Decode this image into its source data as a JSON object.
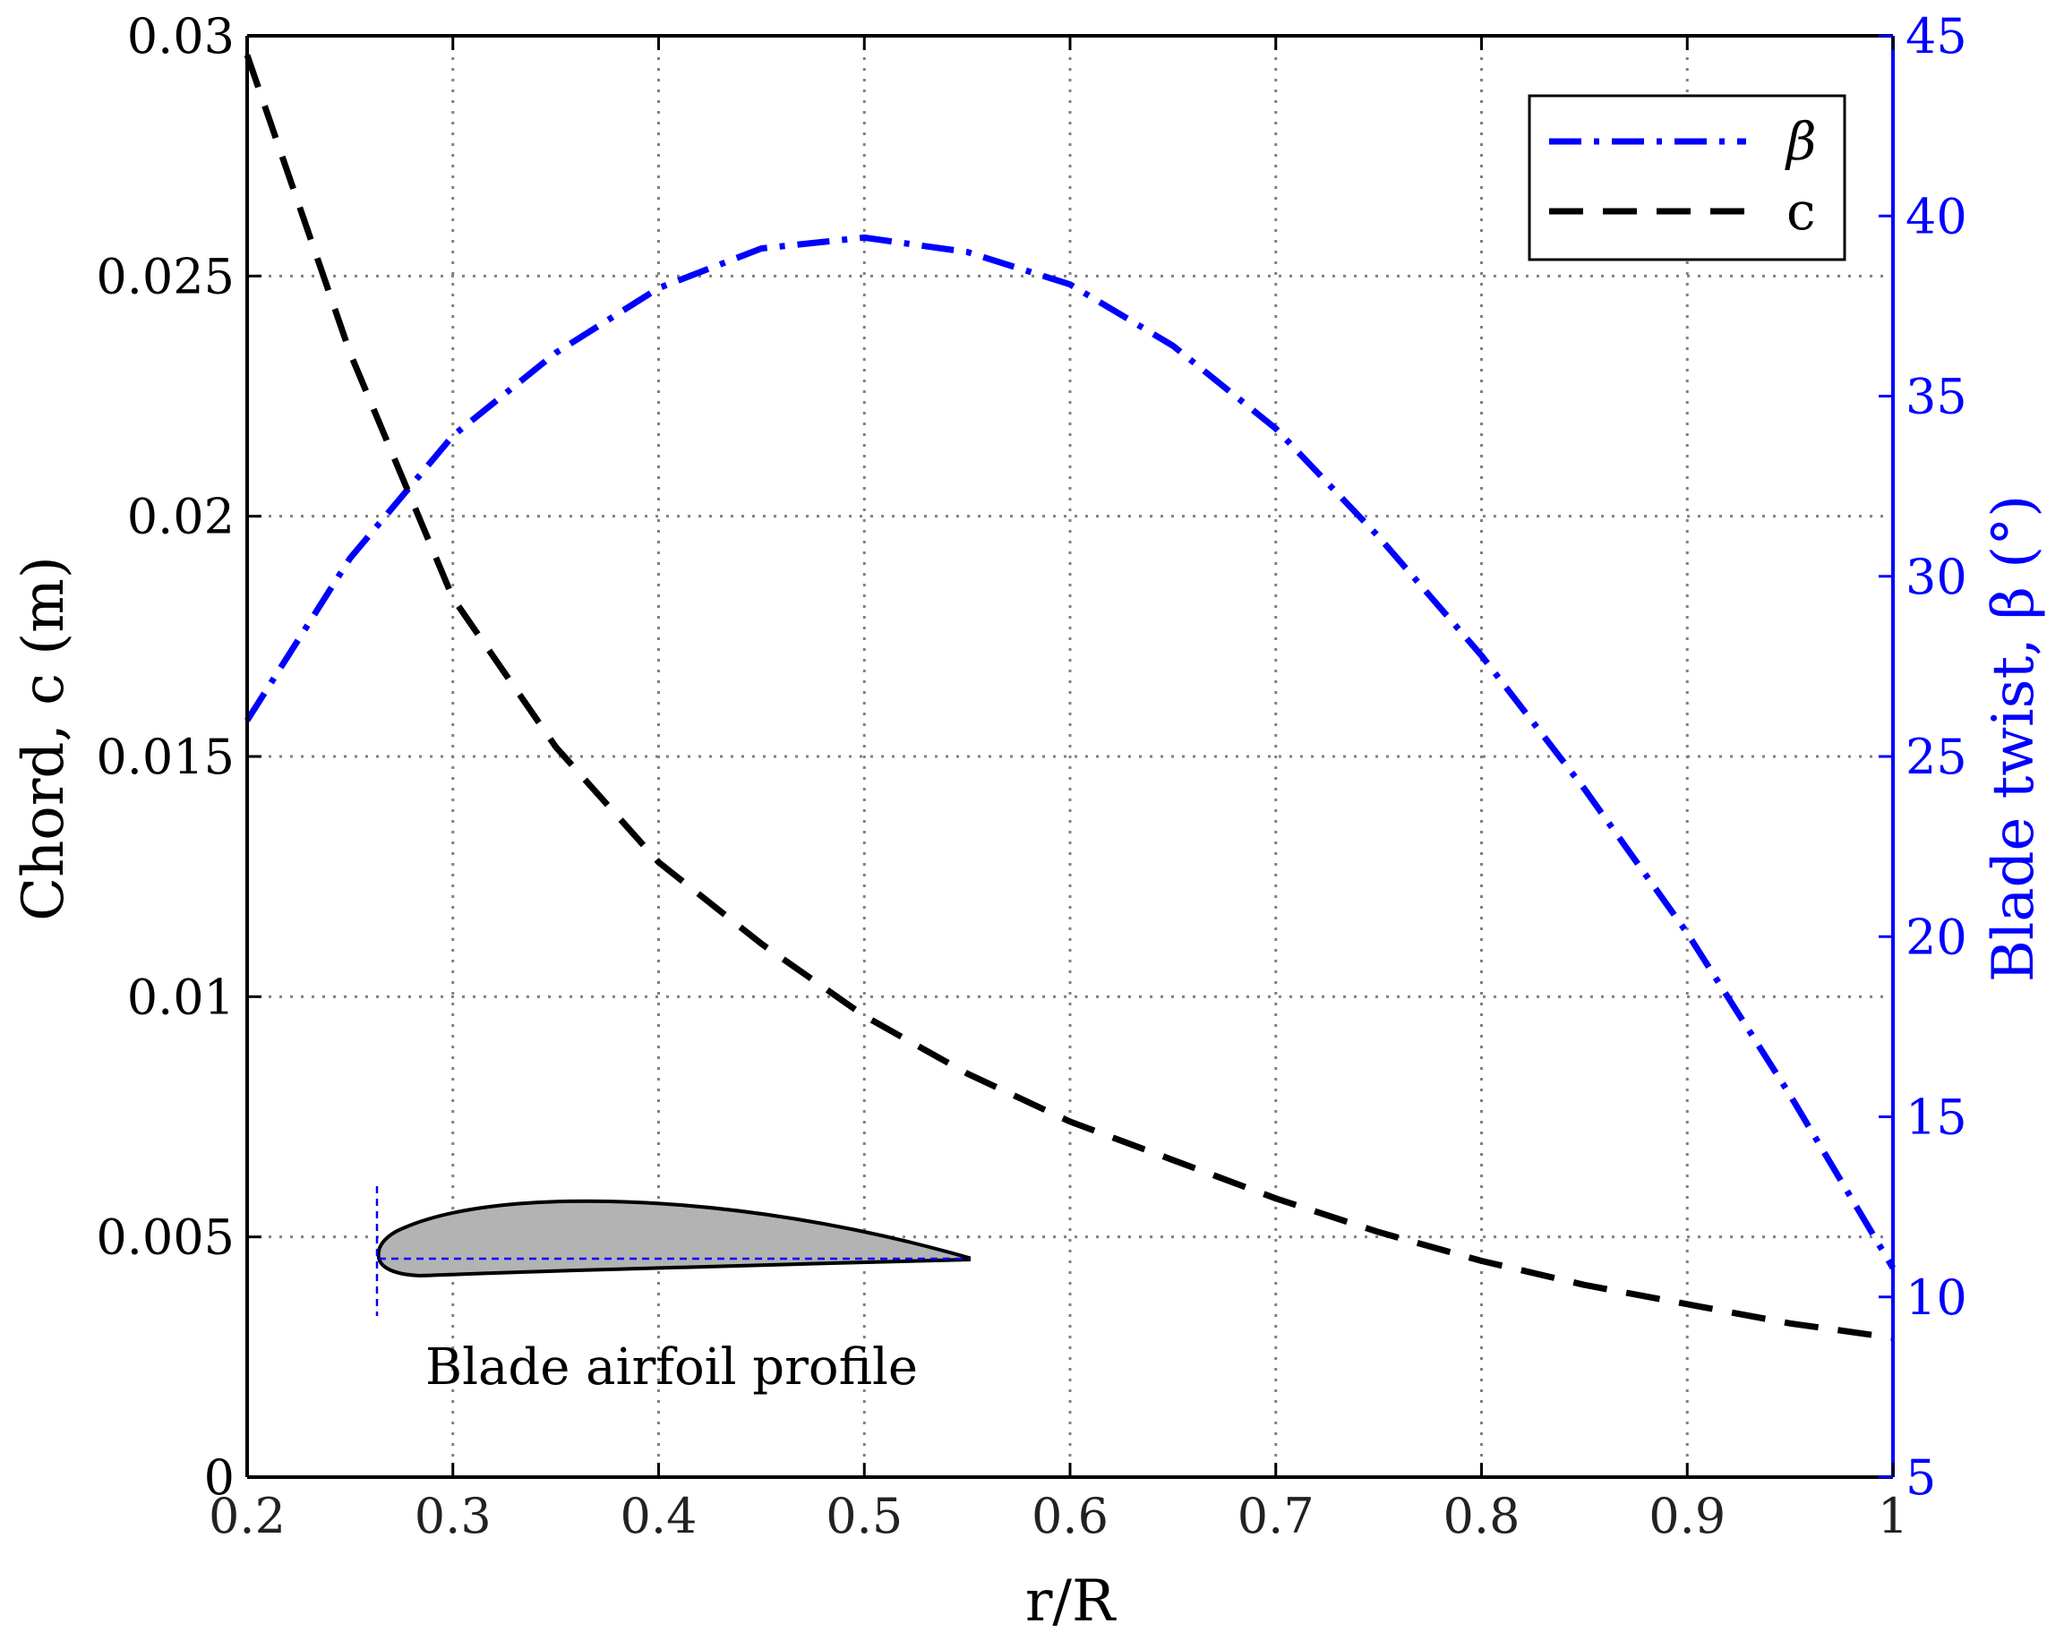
{
  "chart_data": {
    "type": "line",
    "x_label": "r/R",
    "y_label_left": "Chord, c (m)",
    "y_label_right": "Blade twist, β (°)",
    "x_range": [
      0.2,
      1
    ],
    "y_left_range": [
      0,
      0.03
    ],
    "y_right_range": [
      5,
      45
    ],
    "x_ticks": [
      "0.2",
      "0.3",
      "0.4",
      "0.5",
      "0.6",
      "0.7",
      "0.8",
      "0.9",
      "1"
    ],
    "y_left_ticks": [
      "0",
      "0.005",
      "0.01",
      "0.015",
      "0.02",
      "0.025",
      "0.03"
    ],
    "y_right_ticks": [
      "5",
      "10",
      "15",
      "20",
      "25",
      "30",
      "35",
      "40",
      "45"
    ],
    "grid": true,
    "legend_position": "top-right",
    "series": [
      {
        "name": "β",
        "axis": "right",
        "color": "#0000ff",
        "style": "dash-dot",
        "x": [
          0.2,
          0.25,
          0.3,
          0.35,
          0.4,
          0.45,
          0.5,
          0.55,
          0.6,
          0.65,
          0.7,
          0.75,
          0.8,
          0.85,
          0.9,
          0.95,
          1.0
        ],
        "y": [
          26.0,
          30.5,
          33.9,
          36.2,
          38.0,
          39.1,
          39.4,
          39.0,
          38.1,
          36.4,
          34.1,
          31.1,
          27.8,
          24.1,
          20.1,
          15.6,
          10.8
        ]
      },
      {
        "name": "c",
        "axis": "left",
        "color": "#000000",
        "style": "dashed",
        "x": [
          0.2,
          0.25,
          0.3,
          0.35,
          0.4,
          0.45,
          0.5,
          0.55,
          0.6,
          0.65,
          0.7,
          0.75,
          0.8,
          0.85,
          0.9,
          0.95,
          1.0
        ],
        "y": [
          0.0296,
          0.0234,
          0.0183,
          0.0152,
          0.0128,
          0.0111,
          0.0096,
          0.0084,
          0.0074,
          0.0066,
          0.0058,
          0.0051,
          0.0045,
          0.004,
          0.0036,
          0.0032,
          0.0029
        ]
      }
    ],
    "annotation": "Blade airfoil profile"
  }
}
